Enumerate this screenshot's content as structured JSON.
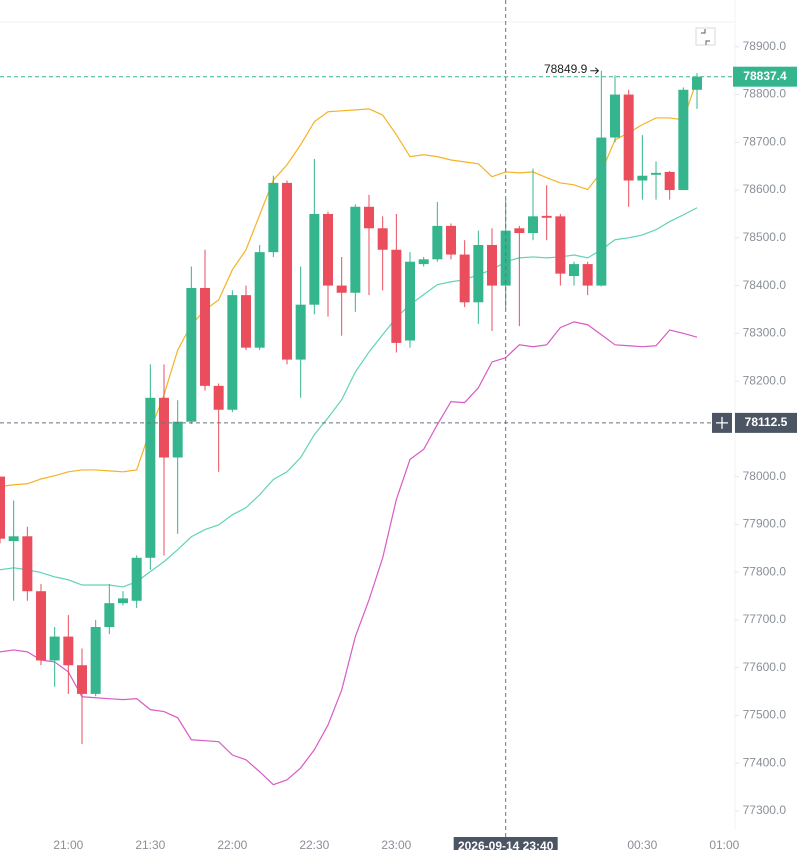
{
  "chart_data": {
    "type": "candlestick",
    "x": [
      "20:35",
      "20:40",
      "20:45",
      "20:50",
      "20:55",
      "21:00",
      "21:05",
      "21:10",
      "21:15",
      "21:20",
      "21:25",
      "21:30",
      "21:35",
      "21:40",
      "21:45",
      "21:50",
      "21:55",
      "22:00",
      "22:05",
      "22:10",
      "22:15",
      "22:20",
      "22:25",
      "22:30",
      "22:35",
      "22:40",
      "22:45",
      "22:50",
      "22:55",
      "23:00",
      "23:05",
      "23:10",
      "23:15",
      "23:20",
      "23:25",
      "23:30",
      "23:35",
      "23:40",
      "23:45",
      "23:50",
      "23:55",
      "00:00",
      "00:05",
      "00:10",
      "00:15",
      "00:20",
      "00:25",
      "00:30",
      "00:35",
      "00:40",
      "00:45",
      "00:50"
    ],
    "open": [
      78000,
      77865,
      77875,
      77760,
      77615,
      77665,
      77605,
      77545,
      77685,
      77735,
      77740,
      77830,
      78165,
      78040,
      78115,
      78395,
      78190,
      78140,
      78380,
      78270,
      78470,
      78615,
      78245,
      78360,
      78550,
      78400,
      78385,
      78565,
      78520,
      78475,
      78285,
      78445,
      78455,
      78525,
      78465,
      78365,
      78485,
      78400,
      78520,
      78510,
      78546,
      78545,
      78420,
      78445,
      78400,
      78710,
      78800,
      78620,
      78632,
      78638,
      78600,
      78810
    ],
    "high": [
      78000,
      77950,
      77895,
      77775,
      77685,
      77710,
      77640,
      77700,
      77775,
      77760,
      77835,
      78235,
      78235,
      78160,
      78440,
      78475,
      78195,
      78390,
      78400,
      78485,
      78630,
      78620,
      78440,
      78665,
      78555,
      78460,
      78570,
      78590,
      78545,
      78550,
      78470,
      78460,
      78575,
      78530,
      78495,
      78515,
      78520,
      78580,
      78525,
      78645,
      78610,
      78550,
      78450,
      78450,
      78849.9,
      78840,
      78810,
      78715,
      78660,
      78640,
      78815,
      78845
    ],
    "low": [
      77860,
      77740,
      77740,
      77605,
      77560,
      77545,
      77440,
      77540,
      77670,
      77730,
      77725,
      77805,
      77835,
      77880,
      78110,
      78180,
      78010,
      78135,
      78265,
      78265,
      78460,
      78235,
      78165,
      78340,
      78335,
      78295,
      78345,
      78380,
      78390,
      78260,
      78270,
      78440,
      78450,
      78455,
      78355,
      78320,
      78305,
      78350,
      78315,
      78495,
      78495,
      78400,
      78400,
      78380,
      78398,
      78700,
      78565,
      78580,
      78580,
      78580,
      78600,
      78770
    ],
    "close": [
      77870,
      77875,
      77760,
      77615,
      77665,
      77605,
      77545,
      77685,
      77735,
      77745,
      77830,
      78165,
      78040,
      78115,
      78395,
      78190,
      78140,
      78380,
      78270,
      78470,
      78615,
      78245,
      78360,
      78550,
      78400,
      78385,
      78565,
      78520,
      78475,
      78280,
      78450,
      78455,
      78525,
      78465,
      78365,
      78485,
      78400,
      78515,
      78510,
      78545,
      78542,
      78425,
      78445,
      78400,
      78710,
      78800,
      78620,
      78630,
      78636,
      78600,
      78810,
      78837.4
    ],
    "up_color": "#35b58d",
    "down_color": "#ea4d5c",
    "lines": [
      {
        "color": "#f5b324",
        "values": [
          77979,
          77983,
          77985,
          77995,
          78002,
          78010,
          78014,
          78014,
          78012,
          78010,
          78014,
          78098,
          78171,
          78265,
          78318,
          78349,
          78370,
          78433,
          78475,
          78548,
          78621,
          78653,
          78695,
          78743,
          78764,
          78766,
          78768,
          78770,
          78757,
          78716,
          78670,
          78674,
          78670,
          78663,
          78659,
          78655,
          78628,
          78638,
          78636,
          78638,
          78626,
          78615,
          78611,
          78601,
          78638,
          78705,
          78720,
          78737,
          78751,
          78751,
          78747,
          78831
        ]
      },
      {
        "color": "#5fd3b8",
        "values": [
          77805,
          77809,
          77805,
          77799,
          77790,
          77784,
          77773,
          77773,
          77773,
          77769,
          77780,
          77801,
          77822,
          77847,
          77874,
          77889,
          77899,
          77920,
          77935,
          77962,
          77994,
          78010,
          78040,
          78088,
          78123,
          78161,
          78219,
          78261,
          78297,
          78333,
          78360,
          78381,
          78402,
          78408,
          78412,
          78423,
          78433,
          78450,
          78458,
          78460,
          78458,
          78460,
          78464,
          78458,
          78475,
          78496,
          78500,
          78506,
          78517,
          78534,
          78548,
          78563
        ]
      },
      {
        "color": "#d95bc4",
        "values": [
          77633,
          77637,
          77633,
          77616,
          77612,
          77591,
          77539,
          77537,
          77535,
          77533,
          77535,
          77512,
          77508,
          77495,
          77449,
          77447,
          77445,
          77417,
          77407,
          77382,
          77355,
          77365,
          77390,
          77428,
          77480,
          77553,
          77665,
          77742,
          77830,
          77952,
          78036,
          78057,
          78109,
          78157,
          78155,
          78186,
          78240,
          78249,
          78276,
          78272,
          78276,
          78312,
          78324,
          78318,
          78297,
          78276,
          78274,
          78272,
          78274,
          78307,
          78300,
          78292
        ]
      }
    ],
    "ylim": [
      77260,
      78998
    ],
    "yticks": [
      {
        "value": 77300,
        "label": "77300.0"
      },
      {
        "value": 77400,
        "label": "77400.0"
      },
      {
        "value": 77500,
        "label": "77500.0"
      },
      {
        "value": 77600,
        "label": "77600.0"
      },
      {
        "value": 77700,
        "label": "77700.0"
      },
      {
        "value": 77800,
        "label": "77800.0"
      },
      {
        "value": 77900,
        "label": "77900.0"
      },
      {
        "value": 78000,
        "label": "78000.0"
      },
      {
        "value": 78100,
        "label": "78100.0"
      },
      {
        "value": 78200,
        "label": "78200.0"
      },
      {
        "value": 78300,
        "label": "78300.0"
      },
      {
        "value": 78400,
        "label": "78400.0"
      },
      {
        "value": 78500,
        "label": "78500.0"
      },
      {
        "value": 78600,
        "label": "78600.0"
      },
      {
        "value": 78700,
        "label": "78700.0"
      },
      {
        "value": 78800,
        "label": "78800.0"
      },
      {
        "value": 78900,
        "label": "78900.0"
      }
    ],
    "xticks": [
      "21:00",
      "21:30",
      "22:00",
      "22:30",
      "23:00",
      "00:30",
      "01:00"
    ],
    "grid": false,
    "high_marker": 78849.9,
    "last_price": {
      "value": 78837.4,
      "color": "#35b58d"
    },
    "crosshair": {
      "value": 78112.5,
      "label": "2026-09-14 23:40",
      "color": "#4b5563"
    }
  }
}
